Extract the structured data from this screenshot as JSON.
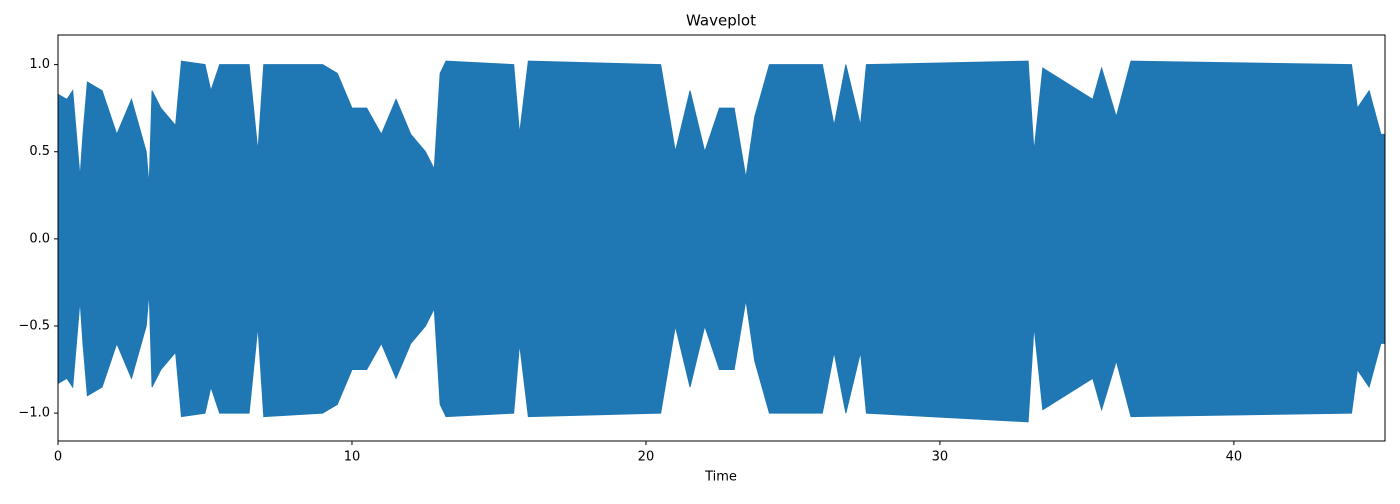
{
  "chart_data": {
    "type": "area",
    "title": "Waveplot",
    "x_label": "Time",
    "color": "#1f77b4",
    "x": [
      0,
      0.3,
      0.5,
      0.75,
      0.85,
      1.0,
      1.5,
      2.0,
      2.5,
      3.0,
      3.1,
      3.2,
      3.5,
      4.0,
      4.2,
      5.0,
      5.2,
      5.5,
      6.5,
      6.8,
      7.0,
      9.0,
      9.5,
      10.0,
      10.5,
      11.0,
      11.5,
      12.0,
      12.5,
      12.8,
      13.0,
      13.2,
      15.5,
      15.7,
      16.0,
      20.5,
      21.0,
      21.5,
      22.0,
      22.5,
      23.0,
      23.4,
      23.7,
      24.2,
      26.0,
      26.4,
      26.8,
      27.3,
      27.5,
      33.0,
      33.2,
      33.5,
      35.2,
      35.5,
      36.0,
      36.5,
      44.0,
      44.2,
      44.6,
      45.0,
      45.14
    ],
    "upper": [
      0.83,
      0.8,
      0.85,
      0.35,
      0.6,
      0.9,
      0.85,
      0.6,
      0.8,
      0.5,
      0.3,
      0.85,
      0.75,
      0.65,
      1.02,
      1.0,
      0.85,
      1.0,
      1.0,
      0.5,
      1.0,
      1.0,
      0.95,
      0.75,
      0.75,
      0.6,
      0.8,
      0.6,
      0.5,
      0.4,
      0.95,
      1.02,
      1.0,
      0.6,
      1.02,
      1.0,
      0.5,
      0.85,
      0.5,
      0.75,
      0.75,
      0.35,
      0.7,
      1.0,
      1.0,
      0.65,
      1.0,
      0.65,
      1.0,
      1.02,
      0.5,
      0.98,
      0.8,
      0.98,
      0.7,
      1.02,
      1.0,
      0.75,
      0.85,
      0.6,
      0.6
    ],
    "lower": [
      -0.83,
      -0.8,
      -0.85,
      -0.35,
      -0.6,
      -0.9,
      -0.85,
      -0.6,
      -0.8,
      -0.5,
      -0.3,
      -0.85,
      -0.75,
      -0.65,
      -1.02,
      -1.0,
      -0.85,
      -1.0,
      -1.0,
      -0.5,
      -1.02,
      -1.0,
      -0.95,
      -0.75,
      -0.75,
      -0.6,
      -0.8,
      -0.6,
      -0.5,
      -0.4,
      -0.95,
      -1.02,
      -1.0,
      -0.6,
      -1.02,
      -1.0,
      -0.5,
      -0.85,
      -0.5,
      -0.75,
      -0.75,
      -0.35,
      -0.7,
      -1.0,
      -1.0,
      -0.65,
      -1.0,
      -0.65,
      -1.0,
      -1.05,
      -0.5,
      -0.98,
      -0.8,
      -0.98,
      -0.7,
      -1.02,
      -1.0,
      -0.75,
      -0.85,
      -0.6,
      -0.6
    ],
    "xlim": [
      0,
      45.14
    ],
    "ylim": [
      -1.16,
      1.17
    ],
    "xticks": [
      0,
      10,
      20,
      30,
      40
    ],
    "yticks": [
      {
        "value": -1.0,
        "label": "−1.0"
      },
      {
        "value": -0.5,
        "label": "−0.5"
      },
      {
        "value": 0.0,
        "label": "0.0"
      },
      {
        "value": 0.5,
        "label": "0.5"
      },
      {
        "value": 1.0,
        "label": "1.0"
      }
    ],
    "grid": false
  }
}
